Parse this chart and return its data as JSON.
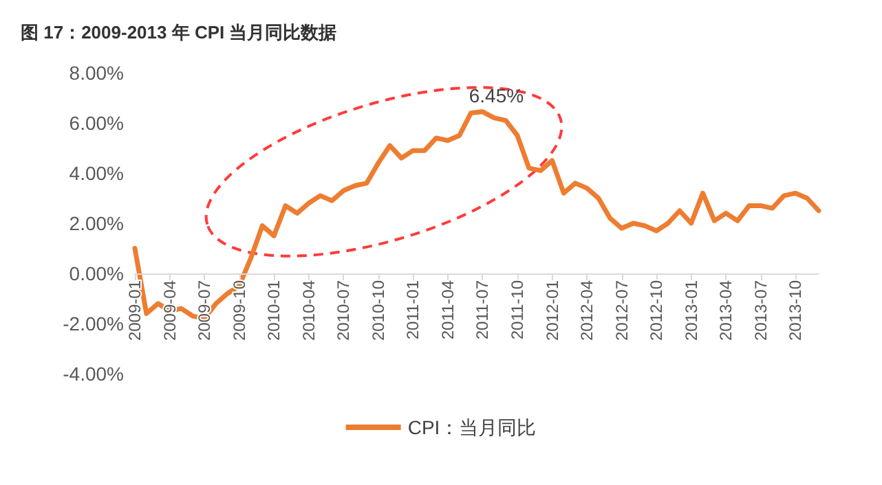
{
  "chart_data": {
    "type": "line",
    "title": "图 17：2009-2013 年 CPI 当月同比数据",
    "categories": [
      "2009-01",
      null,
      null,
      "2009-04",
      null,
      null,
      "2009-07",
      null,
      null,
      "2009-10",
      null,
      null,
      "2010-01",
      null,
      null,
      "2010-04",
      null,
      null,
      "2010-07",
      null,
      null,
      "2010-10",
      null,
      null,
      "2011-01",
      null,
      null,
      "2011-04",
      null,
      null,
      "2011-07",
      null,
      null,
      "2011-10",
      null,
      null,
      "2012-01",
      null,
      null,
      "2012-04",
      null,
      null,
      "2012-07",
      null,
      null,
      "2012-10",
      null,
      null,
      "2013-01",
      null,
      null,
      "2013-04",
      null,
      null,
      "2013-07",
      null,
      null,
      "2013-10",
      null,
      null
    ],
    "series": [
      {
        "name": "CPI：当月同比",
        "color": "#ed7d31",
        "values": [
          1.0,
          -1.6,
          -1.2,
          -1.5,
          -1.4,
          -1.7,
          -1.8,
          -1.2,
          -0.8,
          -0.5,
          0.6,
          1.9,
          1.5,
          2.7,
          2.4,
          2.8,
          3.1,
          2.9,
          3.3,
          3.5,
          3.6,
          4.4,
          5.1,
          4.6,
          4.9,
          4.9,
          5.4,
          5.3,
          5.5,
          6.4,
          6.45,
          6.2,
          6.1,
          5.5,
          4.2,
          4.1,
          4.5,
          3.2,
          3.6,
          3.4,
          3.0,
          2.2,
          1.8,
          2.0,
          1.9,
          1.7,
          2.0,
          2.5,
          2.0,
          3.2,
          2.1,
          2.4,
          2.1,
          2.7,
          2.7,
          2.6,
          3.1,
          3.2,
          3.0,
          2.5
        ],
        "value_labels": [
          null,
          null,
          null,
          null,
          null,
          null,
          null,
          null,
          null,
          null,
          null,
          null,
          null,
          null,
          null,
          null,
          null,
          null,
          null,
          null,
          null,
          null,
          null,
          null,
          null,
          null,
          null,
          null,
          null,
          null,
          "6.45%",
          null,
          null,
          null,
          null,
          null,
          null,
          null,
          null,
          null,
          null,
          null,
          null,
          null,
          null,
          null,
          null,
          null,
          null,
          null,
          null,
          null,
          null,
          null,
          null,
          null,
          null,
          null,
          null,
          null
        ]
      }
    ],
    "ylim": [
      -4,
      8
    ],
    "yticks": [
      {
        "value": -4,
        "label": "-4.00%"
      },
      {
        "value": -2,
        "label": "-2.00%"
      },
      {
        "value": 0,
        "label": "0.00%"
      },
      {
        "value": 2,
        "label": "2.00%"
      },
      {
        "value": 4,
        "label": "4.00%"
      },
      {
        "value": 6,
        "label": "6.00%"
      },
      {
        "value": 8,
        "label": "8.00%"
      }
    ],
    "grid": false,
    "legend": "bottom",
    "marker": "none",
    "line_style": "solid"
  }
}
